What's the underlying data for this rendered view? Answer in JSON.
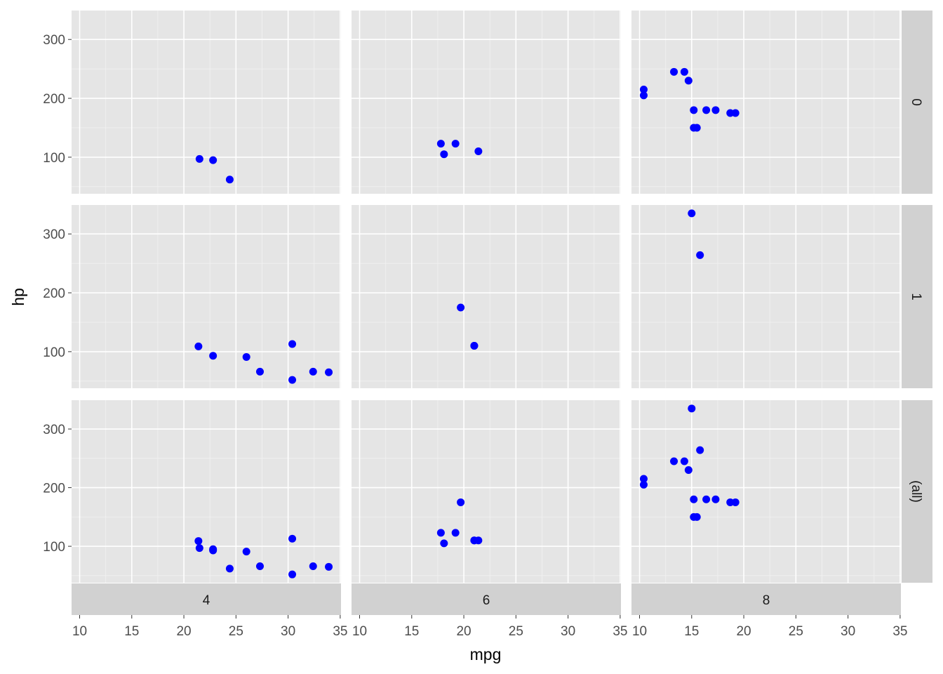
{
  "chart_data": {
    "type": "scatter",
    "xlabel": "mpg",
    "ylabel": "hp",
    "xlim": [
      9.225,
      35.075
    ],
    "ylim": [
      37.85,
      349.15
    ],
    "x_ticks": [
      10,
      15,
      20,
      25,
      30,
      35
    ],
    "y_ticks": [
      100,
      200,
      300
    ],
    "grid": true,
    "point_color": "#0000ff",
    "panel_bg": "#e5e5e5",
    "strip_bg": "#d1d1d1",
    "facet_cols": [
      "4",
      "6",
      "8"
    ],
    "facet_rows": [
      "0",
      "1",
      "(all)"
    ],
    "col_strip_position": "bottom",
    "row_strip_position": "right",
    "panels": {
      "0": {
        "4": [
          [
            24.4,
            62
          ],
          [
            22.8,
            95
          ],
          [
            21.5,
            97
          ]
        ],
        "6": [
          [
            21.4,
            110
          ],
          [
            18.1,
            105
          ],
          [
            19.2,
            123
          ],
          [
            17.8,
            123
          ]
        ],
        "8": [
          [
            18.7,
            175
          ],
          [
            14.3,
            245
          ],
          [
            16.4,
            180
          ],
          [
            17.3,
            180
          ],
          [
            15.2,
            180
          ],
          [
            10.4,
            205
          ],
          [
            10.4,
            215
          ],
          [
            14.7,
            230
          ],
          [
            15.5,
            150
          ],
          [
            15.2,
            150
          ],
          [
            13.3,
            245
          ],
          [
            19.2,
            175
          ]
        ]
      },
      "1": {
        "4": [
          [
            22.8,
            93
          ],
          [
            32.4,
            66
          ],
          [
            30.4,
            52
          ],
          [
            33.9,
            65
          ],
          [
            27.3,
            66
          ],
          [
            26.0,
            91
          ],
          [
            30.4,
            113
          ],
          [
            21.4,
            109
          ]
        ],
        "6": [
          [
            21.0,
            110
          ],
          [
            21.0,
            110
          ],
          [
            19.7,
            175
          ]
        ],
        "8": [
          [
            15.8,
            264
          ],
          [
            15.0,
            335
          ]
        ]
      }
    }
  }
}
